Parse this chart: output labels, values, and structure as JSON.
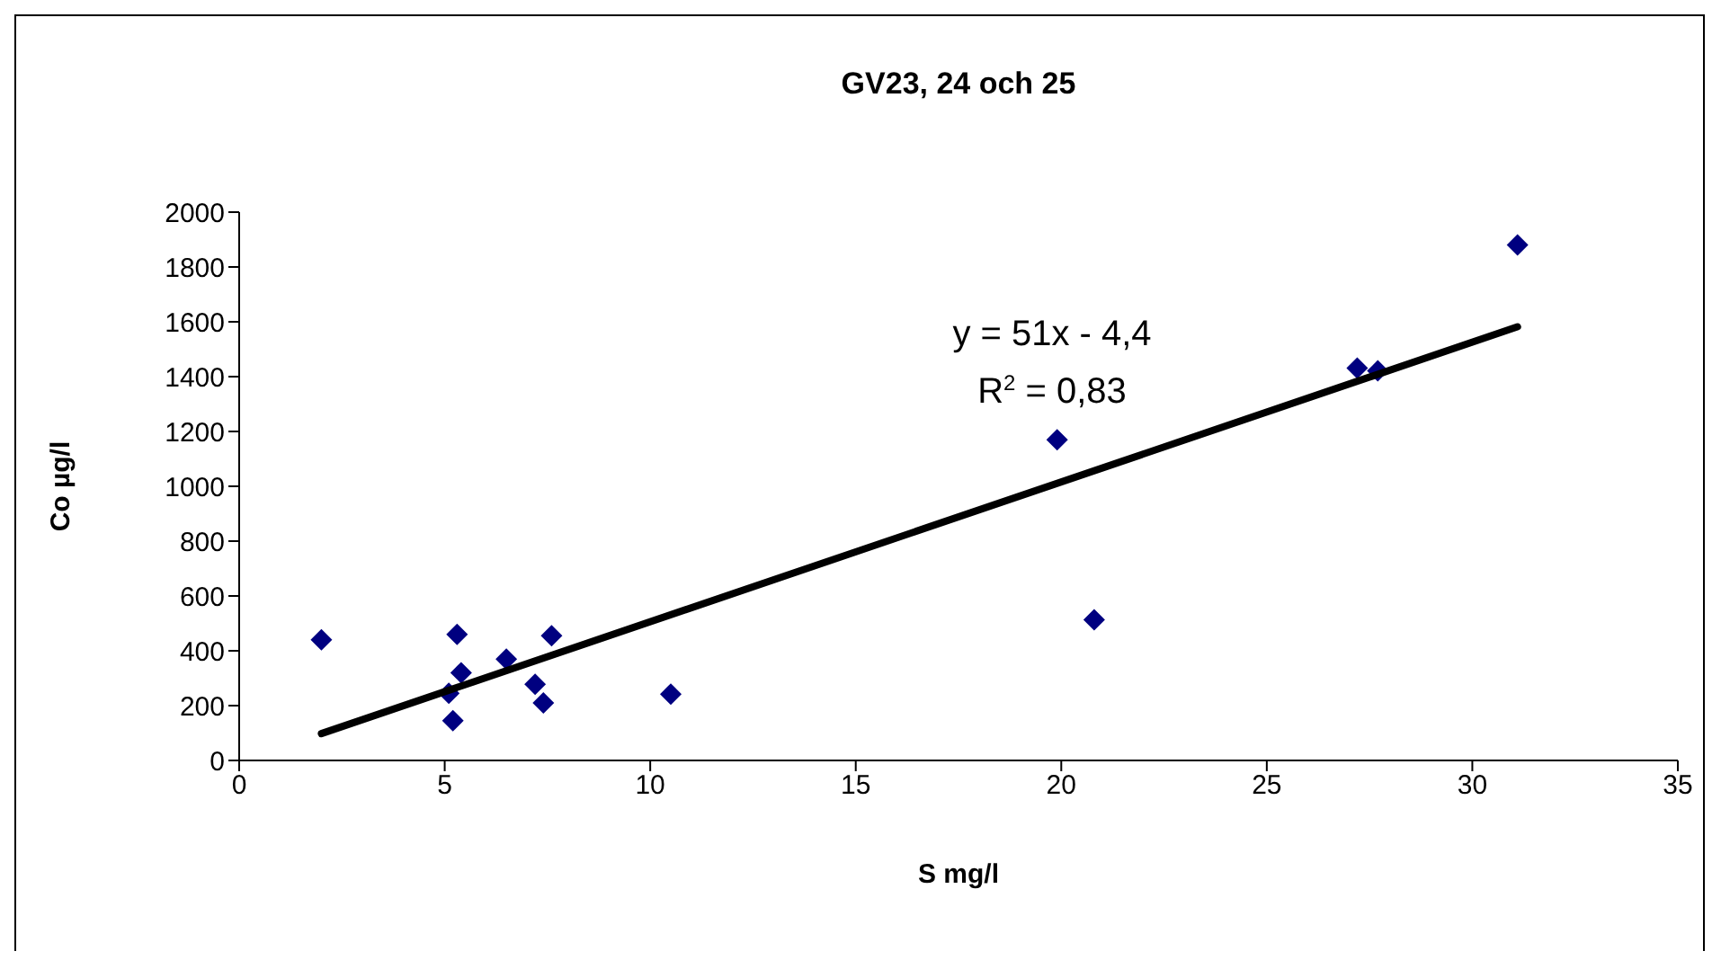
{
  "chart_data": {
    "type": "scatter",
    "title": "GV23, 24 och 25",
    "xlabel": "S mg/l",
    "ylabel": "Co µg/l",
    "xlim": [
      0,
      35
    ],
    "xticks": [
      0,
      5,
      10,
      15,
      20,
      25,
      30,
      35
    ],
    "ylim": [
      0,
      2000
    ],
    "yticks": [
      0,
      200,
      400,
      600,
      800,
      1000,
      1200,
      1400,
      1600,
      1800,
      2000
    ],
    "grid": false,
    "series": [
      {
        "color": "#000080",
        "marker": "diamond",
        "x": [
          2.0,
          5.3,
          5.4,
          5.1,
          5.2,
          6.5,
          7.6,
          7.2,
          7.4,
          10.5,
          19.9,
          20.8,
          27.2,
          27.7,
          31.1
        ],
        "values": [
          440,
          460,
          320,
          245,
          145,
          370,
          455,
          278,
          210,
          242,
          1170,
          513,
          1431,
          1421,
          1880
        ]
      },
      {
        "type": "line",
        "color": "#000000",
        "marker": "none",
        "x": [
          2.0,
          31.1
        ],
        "values": [
          98,
          1582
        ],
        "line_style": "solid"
      }
    ],
    "annotations": [
      "y = 51x - 4,4",
      "R$^{2}$ = 0,83"
    ]
  }
}
